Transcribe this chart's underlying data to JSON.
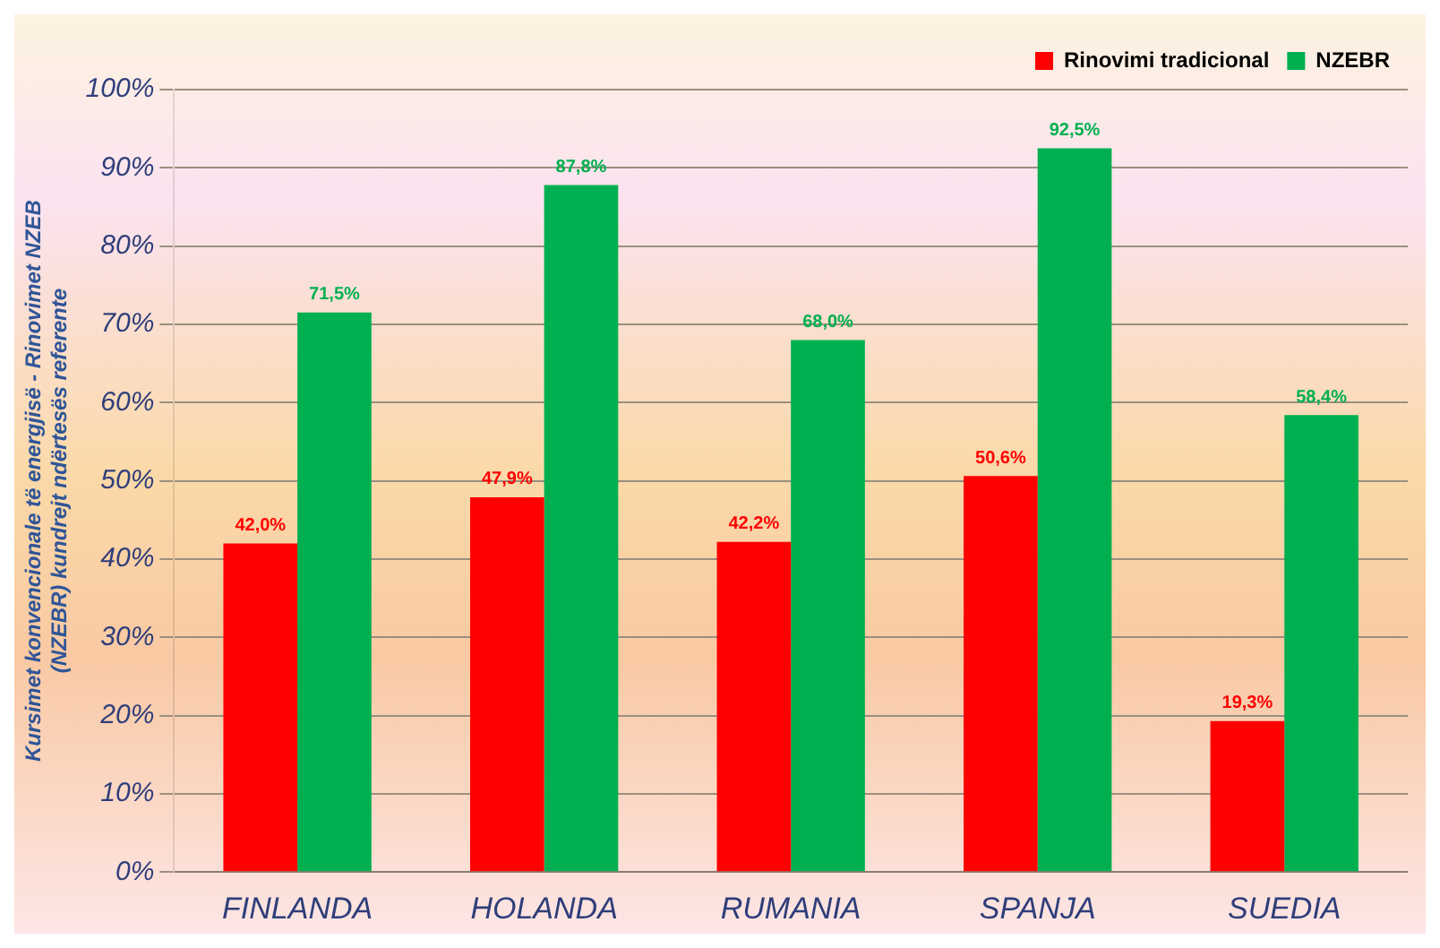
{
  "chart_data": {
    "type": "bar",
    "ylabel": "Kursimet konvencionale të energjisë - Rinovimet NZEB (NZEBR) kundrejt ndërtesës referente",
    "categories": [
      "FINLANDA",
      "HOLANDA",
      "RUMANIA",
      "SPANJA",
      "SUEDIA"
    ],
    "series": [
      {
        "name": "Rinovimi tradicional",
        "color": "#ff0000",
        "values": [
          42.0,
          47.9,
          42.2,
          50.6,
          19.3
        ],
        "value_labels": [
          "42,0%",
          "47,9%",
          "42,2%",
          "50,6%",
          "19,3%"
        ]
      },
      {
        "name": "NZEBR",
        "color": "#00b050",
        "values": [
          71.5,
          87.8,
          68.0,
          92.5,
          58.4
        ],
        "value_labels": [
          "71,5%",
          "87,8%",
          "68,0%",
          "92,5%",
          "58,4%"
        ]
      }
    ],
    "ylim": [
      0,
      100
    ],
    "yticks": [
      {
        "value": 0,
        "label": "0%"
      },
      {
        "value": 10,
        "label": "10%"
      },
      {
        "value": 20,
        "label": "20%"
      },
      {
        "value": 30,
        "label": "30%"
      },
      {
        "value": 40,
        "label": "40%"
      },
      {
        "value": 50,
        "label": "50%"
      },
      {
        "value": 60,
        "label": "60%"
      },
      {
        "value": 70,
        "label": "70%"
      },
      {
        "value": 80,
        "label": "80%"
      },
      {
        "value": 90,
        "label": "90%"
      },
      {
        "value": 100,
        "label": "100%"
      }
    ],
    "grid": "y",
    "legend": "top right"
  }
}
